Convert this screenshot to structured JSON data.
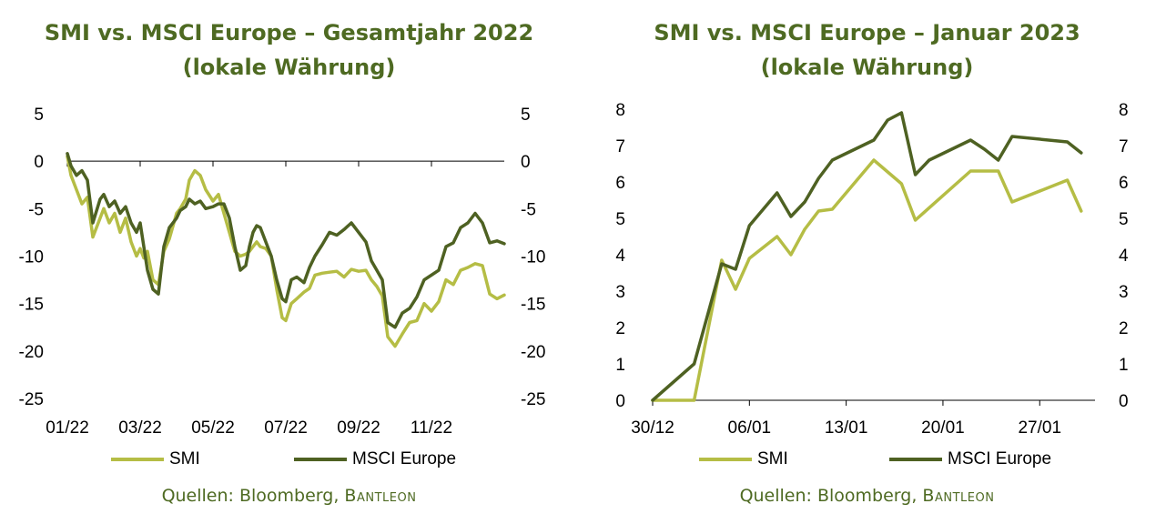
{
  "colors": {
    "smi": "#b5bd45",
    "msci": "#4e6122",
    "title": "#4e6a22",
    "axis": "#000000"
  },
  "source": {
    "prefix": "Quellen: Bloomberg, ",
    "brand": "Bantleon"
  },
  "chart_data": [
    {
      "type": "line",
      "title_line1": "SMI vs. MSCI Europe – Gesamtjahr 2022",
      "title_line2": "(lokale Währung)",
      "xlabel": "",
      "ylabel": "",
      "ylim": [
        -25,
        5
      ],
      "yticks": [
        "5",
        "0",
        "-5",
        "-10",
        "-15",
        "-20",
        "-25"
      ],
      "yticks_right": [
        "5",
        "0",
        "-5",
        "-10",
        "-15",
        "-20",
        "-25"
      ],
      "xtick_labels": [
        "01/22",
        "03/22",
        "05/22",
        "07/22",
        "09/22",
        "11/22"
      ],
      "xtick_months": [
        0,
        2,
        4,
        6,
        8,
        10
      ],
      "xlim_months": [
        0,
        12
      ],
      "legend": [
        "SMI",
        "MSCI Europe"
      ],
      "legend_position": "bottom",
      "grid": false,
      "series": [
        {
          "name": "SMI",
          "color": "#b5bd45",
          "x_months": [
            0,
            0.1,
            0.25,
            0.4,
            0.55,
            0.7,
            0.9,
            1.0,
            1.15,
            1.3,
            1.45,
            1.6,
            1.75,
            1.9,
            2.0,
            2.1,
            2.2,
            2.35,
            2.5,
            2.65,
            2.8,
            3.0,
            3.1,
            3.25,
            3.35,
            3.5,
            3.65,
            3.8,
            4.0,
            4.15,
            4.3,
            4.45,
            4.6,
            4.75,
            4.9,
            5.0,
            5.1,
            5.2,
            5.3,
            5.45,
            5.6,
            5.75,
            5.9,
            6.0,
            6.15,
            6.3,
            6.5,
            6.65,
            6.8,
            7.0,
            7.2,
            7.4,
            7.6,
            7.8,
            8.0,
            8.2,
            8.35,
            8.5,
            8.65,
            8.8,
            9.0,
            9.2,
            9.4,
            9.6,
            9.8,
            10.0,
            10.2,
            10.4,
            10.6,
            10.8,
            11.0,
            11.2,
            11.4,
            11.6,
            11.8,
            12.0
          ],
          "values": [
            0.5,
            -1.5,
            -3,
            -4.5,
            -3.8,
            -8,
            -6,
            -5,
            -6.5,
            -5.5,
            -7.5,
            -6,
            -8.5,
            -10,
            -9.2,
            -10.2,
            -9.5,
            -12.5,
            -13,
            -9.5,
            -8.2,
            -5.5,
            -5,
            -4,
            -2,
            -1,
            -1.5,
            -3,
            -4.2,
            -3.5,
            -5.5,
            -7.5,
            -9.5,
            -10,
            -9.8,
            -9.5,
            -9,
            -8.5,
            -9,
            -9.2,
            -10,
            -13.5,
            -16.5,
            -16.8,
            -15,
            -14.5,
            -13.8,
            -13.4,
            -12,
            -11.8,
            -11.7,
            -11.6,
            -12.2,
            -11.4,
            -11.6,
            -11.5,
            -12.5,
            -13.2,
            -14.2,
            -18.5,
            -19.5,
            -18.2,
            -17,
            -16.8,
            -15,
            -15.8,
            -14.8,
            -12.5,
            -13,
            -11.5,
            -11.2,
            -10.8,
            -11,
            -14,
            -14.5,
            -14.1
          ]
        },
        {
          "name": "MSCI Europe",
          "color": "#4e6122",
          "x_months": [
            0,
            0.1,
            0.25,
            0.4,
            0.55,
            0.7,
            0.9,
            1.0,
            1.15,
            1.3,
            1.45,
            1.6,
            1.75,
            1.9,
            2.0,
            2.1,
            2.2,
            2.35,
            2.5,
            2.65,
            2.8,
            3.0,
            3.1,
            3.25,
            3.35,
            3.5,
            3.65,
            3.8,
            4.0,
            4.15,
            4.3,
            4.45,
            4.6,
            4.75,
            4.9,
            5.0,
            5.1,
            5.2,
            5.3,
            5.45,
            5.6,
            5.75,
            5.9,
            6.0,
            6.15,
            6.3,
            6.5,
            6.65,
            6.8,
            7.0,
            7.2,
            7.4,
            7.6,
            7.8,
            8.0,
            8.2,
            8.35,
            8.5,
            8.65,
            8.8,
            9.0,
            9.2,
            9.4,
            9.6,
            9.8,
            10.0,
            10.2,
            10.4,
            10.6,
            10.8,
            11.0,
            11.2,
            11.4,
            11.6,
            11.8,
            12.0
          ],
          "values": [
            0.8,
            -0.5,
            -1.5,
            -1,
            -2,
            -6.5,
            -4,
            -3.5,
            -4.8,
            -4.2,
            -5.5,
            -4.8,
            -6.5,
            -7.5,
            -6.5,
            -9,
            -11.5,
            -13.5,
            -14,
            -9,
            -7,
            -6,
            -5.2,
            -4.8,
            -4,
            -4.5,
            -4.2,
            -5,
            -4.8,
            -4.5,
            -4.5,
            -6,
            -9,
            -11.5,
            -11,
            -9,
            -7.5,
            -6.8,
            -7,
            -8.5,
            -10,
            -12.5,
            -14.5,
            -14.8,
            -12.5,
            -12.2,
            -12.8,
            -11.2,
            -10,
            -8.8,
            -7.5,
            -7.8,
            -7.2,
            -6.5,
            -7.5,
            -8.5,
            -10.5,
            -11.5,
            -12.5,
            -17,
            -17.5,
            -16,
            -15.5,
            -14.3,
            -12.5,
            -12,
            -11.5,
            -9,
            -8.6,
            -7,
            -6.5,
            -5.5,
            -6.5,
            -8.6,
            -8.4,
            -8.7
          ]
        }
      ]
    },
    {
      "type": "line",
      "title_line1": "SMI vs. MSCI Europe – Januar 2023",
      "title_line2": "(lokale Währung)",
      "xlabel": "",
      "ylabel": "",
      "ylim": [
        0,
        8
      ],
      "yticks": [
        "8",
        "7",
        "6",
        "5",
        "4",
        "3",
        "2",
        "1",
        "0"
      ],
      "yticks_right": [
        "8",
        "7",
        "6",
        "5",
        "4",
        "3",
        "2",
        "1",
        "0"
      ],
      "xtick_labels": [
        "30/12",
        "06/01",
        "13/01",
        "20/01",
        "27/01"
      ],
      "xtick_days": [
        0,
        7,
        14,
        21,
        28
      ],
      "xlim_days": [
        0,
        32
      ],
      "legend": [
        "SMI",
        "MSCI Europe"
      ],
      "legend_position": "bottom",
      "grid": false,
      "series": [
        {
          "name": "SMI",
          "color": "#b5bd45",
          "x_days": [
            0,
            3,
            5,
            6,
            7,
            9,
            10,
            11,
            12,
            13,
            16,
            18,
            19,
            23,
            24,
            25,
            26,
            30,
            31
          ],
          "values": [
            0,
            0,
            3.85,
            3.05,
            3.9,
            4.5,
            4.0,
            4.7,
            5.2,
            5.25,
            6.6,
            5.95,
            4.95,
            6.3,
            6.3,
            6.3,
            5.45,
            6.05,
            5.2
          ]
        },
        {
          "name": "MSCI Europe",
          "color": "#4e6122",
          "x_days": [
            0,
            3,
            5,
            6,
            7,
            9,
            10,
            11,
            12,
            13,
            16,
            17,
            18,
            19,
            20,
            23,
            24,
            25,
            26,
            30,
            31
          ],
          "values": [
            0,
            1.0,
            3.75,
            3.6,
            4.8,
            5.7,
            5.05,
            5.45,
            6.1,
            6.6,
            7.15,
            7.7,
            7.9,
            6.2,
            6.6,
            7.15,
            6.9,
            6.6,
            7.25,
            7.1,
            6.8
          ]
        }
      ]
    }
  ]
}
